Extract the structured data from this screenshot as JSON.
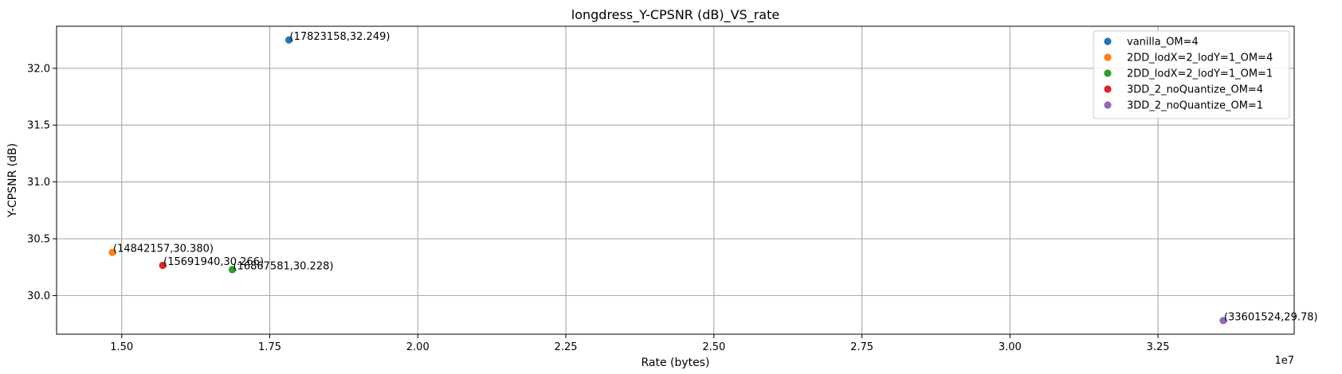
{
  "chart_data": {
    "type": "scatter",
    "title": "longdress_Y-CPSNR (dB)_VS_rate",
    "xlabel": "Rate (bytes)",
    "ylabel": "Y-CPSNR (dB)",
    "x_offset_label": "1e7",
    "x_scale": 10000000,
    "xlim": [
      13900000,
      34800000
    ],
    "ylim": [
      29.66,
      32.37
    ],
    "x_ticks": [
      15000000,
      17500000,
      20000000,
      22500000,
      25000000,
      27500000,
      30000000,
      32500000
    ],
    "x_tick_labels": [
      "1.50",
      "1.75",
      "2.00",
      "2.25",
      "2.50",
      "2.75",
      "3.00",
      "3.25"
    ],
    "y_ticks": [
      30.0,
      30.5,
      31.0,
      31.5,
      32.0
    ],
    "y_tick_labels": [
      "30.0",
      "30.5",
      "31.0",
      "31.5",
      "32.0"
    ],
    "grid": true,
    "legend_position": "top-right",
    "series": [
      {
        "name": "vanilla_OM=4",
        "color": "#1f77b4",
        "points": [
          {
            "x": 17823158,
            "y": 32.249,
            "label": "(17823158,32.249)"
          }
        ]
      },
      {
        "name": "2DD_lodX=2_lodY=1_OM=4",
        "color": "#ff7f0e",
        "points": [
          {
            "x": 14842157,
            "y": 30.38,
            "label": "(14842157,30.380)"
          }
        ]
      },
      {
        "name": "2DD_lodX=2_lodY=1_OM=1",
        "color": "#2ca02c",
        "points": [
          {
            "x": 16867581,
            "y": 30.228,
            "label": "(16867581,30.228)"
          }
        ]
      },
      {
        "name": "3DD_2_noQuantize_OM=4",
        "color": "#d62728",
        "points": [
          {
            "x": 15691940,
            "y": 30.266,
            "label": "(15691940,30.266)"
          }
        ]
      },
      {
        "name": "3DD_2_noQuantize_OM=1",
        "color": "#9467bd",
        "points": [
          {
            "x": 33601524,
            "y": 29.78,
            "label": "(33601524,29.78)"
          }
        ]
      }
    ]
  }
}
